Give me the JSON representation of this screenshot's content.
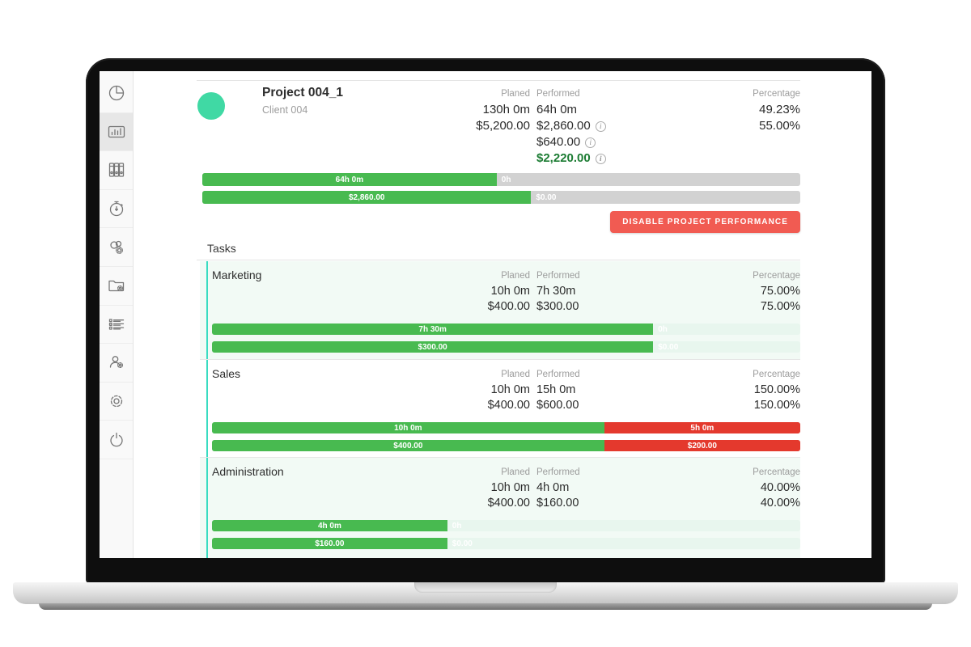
{
  "sidebar": {
    "items": [
      {
        "icon": "pie-chart-icon",
        "active": false
      },
      {
        "icon": "bar-chart-icon",
        "active": true
      },
      {
        "icon": "binders-icon",
        "active": false
      },
      {
        "icon": "stopwatch-icon",
        "active": false
      },
      {
        "icon": "gears-icon",
        "active": false
      },
      {
        "icon": "folder-settings-icon",
        "active": false
      },
      {
        "icon": "task-list-icon",
        "active": false
      },
      {
        "icon": "user-settings-icon",
        "active": false
      },
      {
        "icon": "settings-gear-icon",
        "active": false
      },
      {
        "icon": "power-icon",
        "active": false
      }
    ]
  },
  "project": {
    "avatar_color": "#40d9a4",
    "title": "Project 004_1",
    "client": "Client 004",
    "planned_label": "Planed",
    "performed_label": "Performed",
    "percentage_label": "Percentage",
    "planned_time": "130h 0m",
    "planned_money": "$5,200.00",
    "performed_time": "64h 0m",
    "performed_money": "$2,860.00",
    "performed_expenses": "$640.00",
    "performed_profit": "$2,220.00",
    "percentage_time": "49.23%",
    "percentage_money": "55.00%",
    "time_bar": {
      "fill_width": "49.23%",
      "fill_label": "64h 0m",
      "rest_label": "0h"
    },
    "money_bar": {
      "fill_width": "55%",
      "fill_label": "$2,860.00",
      "rest_label": "$0.00"
    },
    "action_button": "DISABLE PROJECT PERFORMANCE"
  },
  "tasks": {
    "heading": "Tasks",
    "columns": {
      "planned": "Planed",
      "performed": "Performed",
      "percentage": "Percentage"
    },
    "items": [
      {
        "name": "Marketing",
        "planned_time": "10h 0m",
        "planned_money": "$400.00",
        "performed_time": "7h 30m",
        "performed_money": "$300.00",
        "percent_time": "75.00%",
        "percent_money": "75.00%",
        "time_bar": {
          "fill_width": "75%",
          "fill_label": "7h 30m",
          "rest_label": "0h"
        },
        "money_bar": {
          "fill_width": "75%",
          "fill_label": "$300.00",
          "rest_label": "$0.00"
        }
      },
      {
        "name": "Sales",
        "planned_time": "10h 0m",
        "planned_money": "$400.00",
        "performed_time": "15h 0m",
        "performed_money": "$600.00",
        "percent_time": "150.00%",
        "percent_money": "150.00%",
        "time_bar": {
          "fill_width": "66.67%",
          "fill_label": "10h 0m",
          "rest_label": "5h 0m"
        },
        "money_bar": {
          "fill_width": "66.67%",
          "fill_label": "$400.00",
          "rest_label": "$200.00"
        }
      },
      {
        "name": "Administration",
        "planned_time": "10h 0m",
        "planned_money": "$400.00",
        "performed_time": "4h 0m",
        "performed_money": "$160.00",
        "percent_time": "40.00%",
        "percent_money": "40.00%",
        "time_bar": {
          "fill_width": "40%",
          "fill_label": "4h 0m",
          "rest_label": "0h"
        },
        "money_bar": {
          "fill_width": "40%",
          "fill_label": "$160.00",
          "rest_label": "$0.00"
        }
      }
    ]
  },
  "colors": {
    "bar_green": "#48ba50",
    "bar_red": "#e4392d",
    "button_red": "#f15b52",
    "accent_teal": "#39dcc1",
    "profit_green": "#1c7c33",
    "track_gray": "#d2d2d2",
    "track_mint": "#e8f6ee",
    "card_mint": "#f2faf5"
  }
}
